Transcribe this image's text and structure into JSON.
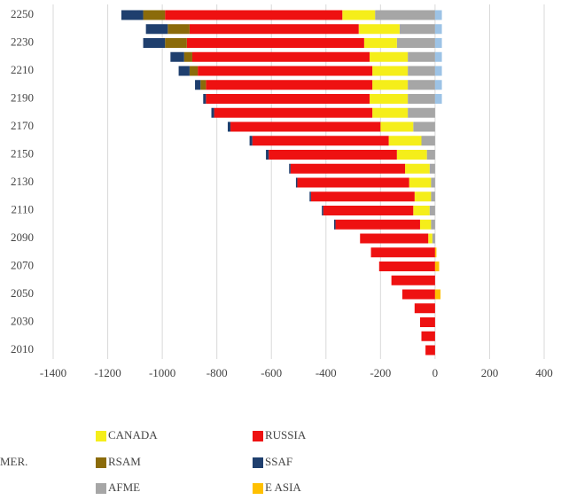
{
  "chart_data": {
    "type": "stacked-hbar",
    "categories": [
      "2010",
      null,
      "2030",
      null,
      "2050",
      null,
      "2070",
      null,
      "2090",
      null,
      "2110",
      null,
      "2130",
      null,
      "2150",
      null,
      "2170",
      null,
      "2190",
      null,
      "2210",
      null,
      "2230",
      null,
      "2250"
    ],
    "series": [
      {
        "name": "CANADA",
        "color": "#f5ee1a",
        "values": [
          0,
          0,
          0,
          0,
          0,
          0,
          0,
          0,
          -15,
          -40,
          -60,
          -60,
          -80,
          -90,
          -110,
          -120,
          -120,
          -130,
          -140,
          -130,
          -130,
          -140,
          -120,
          -150,
          -120
        ]
      },
      {
        "name": "RUSSIA",
        "color": "#ee1111",
        "values": [
          -35,
          -50,
          -55,
          -75,
          -120,
          -160,
          -205,
          -235,
          -250,
          -310,
          -330,
          -380,
          -410,
          -420,
          -470,
          -500,
          -550,
          -580,
          -600,
          -610,
          -640,
          -650,
          -650,
          -620,
          -650
        ]
      },
      {
        "name": "MER.",
        "color": "#9dc3e6",
        "values": [
          0,
          0,
          0,
          0,
          0,
          0,
          0,
          0,
          0,
          0,
          0,
          0,
          0,
          0,
          0,
          0,
          0,
          0,
          25,
          25,
          25,
          25,
          25,
          25,
          25
        ]
      },
      {
        "name": "RSAM",
        "color": "#8b6b0a",
        "values": [
          0,
          0,
          0,
          0,
          0,
          0,
          0,
          0,
          0,
          0,
          0,
          0,
          0,
          0,
          0,
          0,
          0,
          0,
          0,
          -20,
          -30,
          -30,
          -80,
          -80,
          -80
        ]
      },
      {
        "name": "SSAF",
        "color": "#1f3f6e",
        "values": [
          0,
          0,
          0,
          0,
          0,
          0,
          0,
          0,
          0,
          -5,
          -5,
          -5,
          -5,
          -5,
          -10,
          -10,
          -10,
          -10,
          -10,
          -20,
          -40,
          -50,
          -80,
          -80,
          -80
        ]
      },
      {
        "name": "AFME",
        "color": "#a6a6a6",
        "values": [
          0,
          0,
          0,
          0,
          0,
          0,
          0,
          0,
          -10,
          -15,
          -20,
          -15,
          -15,
          -20,
          -30,
          -50,
          -80,
          -100,
          -100,
          -100,
          -100,
          -100,
          -140,
          -130,
          -220
        ]
      },
      {
        "name": "E ASIA",
        "color": "#ffc000",
        "values": [
          0,
          0,
          0,
          0,
          20,
          0,
          15,
          5,
          0,
          0,
          0,
          0,
          0,
          0,
          0,
          0,
          0,
          0,
          0,
          0,
          0,
          0,
          0,
          0,
          0
        ]
      }
    ],
    "stack_order": [
      "AFME",
      "CANADA",
      "RUSSIA",
      "RSAM",
      "SSAF"
    ],
    "xlim": [
      -1400,
      400
    ],
    "xticks": [
      -1400,
      -1200,
      -1000,
      -800,
      -600,
      -400,
      -200,
      0,
      200,
      400
    ],
    "grid": true
  }
}
